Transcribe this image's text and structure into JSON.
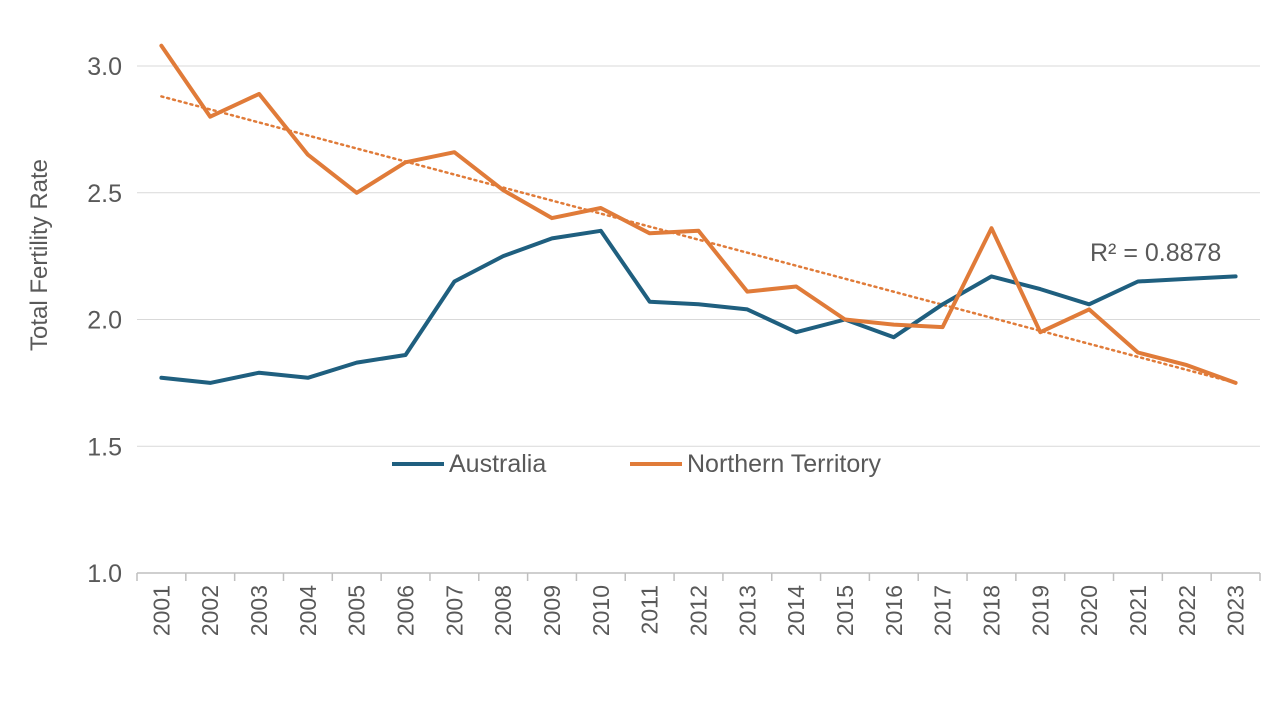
{
  "chart_data": {
    "type": "line",
    "title": "",
    "xlabel": "",
    "ylabel": "Total Fertility Rate",
    "ylim": [
      1.0,
      3.0
    ],
    "yticks": [
      "1.0",
      "1.5",
      "2.0",
      "2.5",
      "3.0"
    ],
    "x": [
      "2001",
      "2002",
      "2003",
      "2004",
      "2005",
      "2006",
      "2007",
      "2008",
      "2009",
      "2010",
      "2011",
      "2012",
      "2013",
      "2014",
      "2015",
      "2016",
      "2017",
      "2018",
      "2019",
      "2020",
      "2021",
      "2022",
      "2023"
    ],
    "series": [
      {
        "name": "Australia",
        "color": "#1f5f7f",
        "values": [
          1.77,
          1.75,
          1.79,
          1.77,
          1.83,
          1.86,
          2.15,
          2.25,
          2.32,
          2.35,
          2.07,
          2.06,
          2.04,
          1.95,
          2.0,
          1.93,
          2.06,
          2.17,
          2.12,
          2.06,
          2.15,
          2.16,
          2.17
        ]
      },
      {
        "name": "Northern Territory",
        "color": "#e07b39",
        "values": [
          3.08,
          2.8,
          2.89,
          2.65,
          2.5,
          2.62,
          2.66,
          2.51,
          2.4,
          2.44,
          2.34,
          2.35,
          2.11,
          2.13,
          2.0,
          1.98,
          1.97,
          2.36,
          1.95,
          2.04,
          1.87,
          1.82,
          1.75
        ]
      }
    ],
    "trendline": {
      "series": "Northern Territory",
      "type": "linear",
      "start": 2.88,
      "end": 1.75,
      "r_squared_label": "R² = 0.8878"
    },
    "grid": true,
    "legend_position": "inside-bottom-center"
  }
}
